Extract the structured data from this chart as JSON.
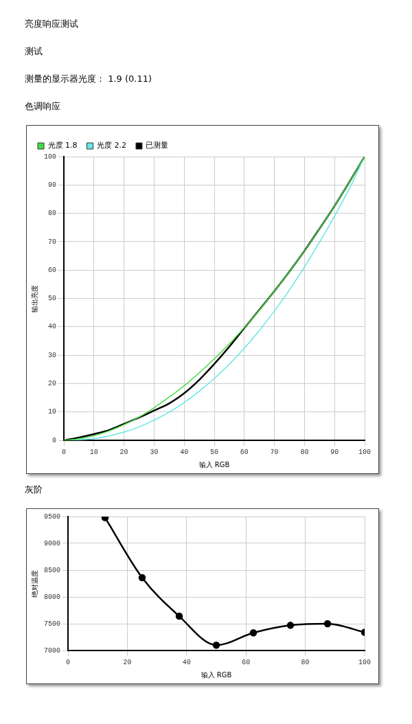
{
  "chart_data": [
    {
      "type": "line",
      "annotations": [
        "亮度响应测试",
        "测试",
        "测量的显示器光度： 1.9 (0.11)"
      ],
      "title": "色调响应",
      "xlabel": "输入 RGB",
      "ylabel": "输出亮度",
      "x": [
        0,
        5,
        10,
        15,
        20,
        25,
        30,
        35,
        40,
        45,
        50,
        55,
        60,
        65,
        70,
        75,
        80,
        85,
        90,
        95,
        100
      ],
      "series": [
        {
          "name": "光度 1.8",
          "color": "#44dd44",
          "values": [
            0,
            0.5,
            1.6,
            3.3,
            5.5,
            8.2,
            11.5,
            15.2,
            19.2,
            23.8,
            28.7,
            34.0,
            39.8,
            45.9,
            52.6,
            59.5,
            66.8,
            74.6,
            82.6,
            91.2,
            100
          ]
        },
        {
          "name": "光度 2.2",
          "color": "#66e6e6",
          "values": [
            0,
            0.2,
            0.6,
            1.5,
            2.9,
            4.7,
            7.1,
            9.9,
            13.3,
            17.3,
            21.8,
            26.8,
            32.5,
            38.7,
            45.6,
            53.0,
            61.1,
            69.8,
            79.0,
            88.9,
            100
          ]
        },
        {
          "name": "已测量",
          "color": "#000000",
          "values": [
            0,
            1.0,
            2.2,
            3.6,
            5.8,
            8.0,
            10.5,
            13.0,
            16.6,
            21.3,
            26.9,
            33.0,
            39.6,
            46.0,
            52.6,
            59.5,
            66.8,
            74.6,
            82.6,
            91.2,
            100
          ]
        }
      ],
      "xlim": [
        0,
        100
      ],
      "xticks": [
        0,
        10,
        20,
        30,
        40,
        50,
        60,
        70,
        80,
        90,
        100
      ],
      "ylim": [
        0,
        100
      ],
      "yticks": [
        0,
        10,
        20,
        30,
        40,
        50,
        60,
        70,
        80,
        90,
        100
      ],
      "grid": true,
      "legend": "top left"
    },
    {
      "type": "line",
      "title": "灰阶",
      "xlabel": "输入 RGB",
      "ylabel": "绝对温度",
      "x": [
        12.5,
        25,
        37.5,
        50,
        62.5,
        75,
        87.5,
        100
      ],
      "values": [
        9480,
        8360,
        7640,
        7100,
        7330,
        7470,
        7500,
        7340
      ],
      "color": "#000000",
      "xlim": [
        0,
        100
      ],
      "xticks": [
        0,
        20,
        40,
        60,
        80,
        100
      ],
      "ylim": [
        7000,
        9500
      ],
      "yticks": [
        7000,
        7500,
        8000,
        8500,
        9000,
        9500
      ],
      "grid": true,
      "marker": "circle"
    }
  ]
}
